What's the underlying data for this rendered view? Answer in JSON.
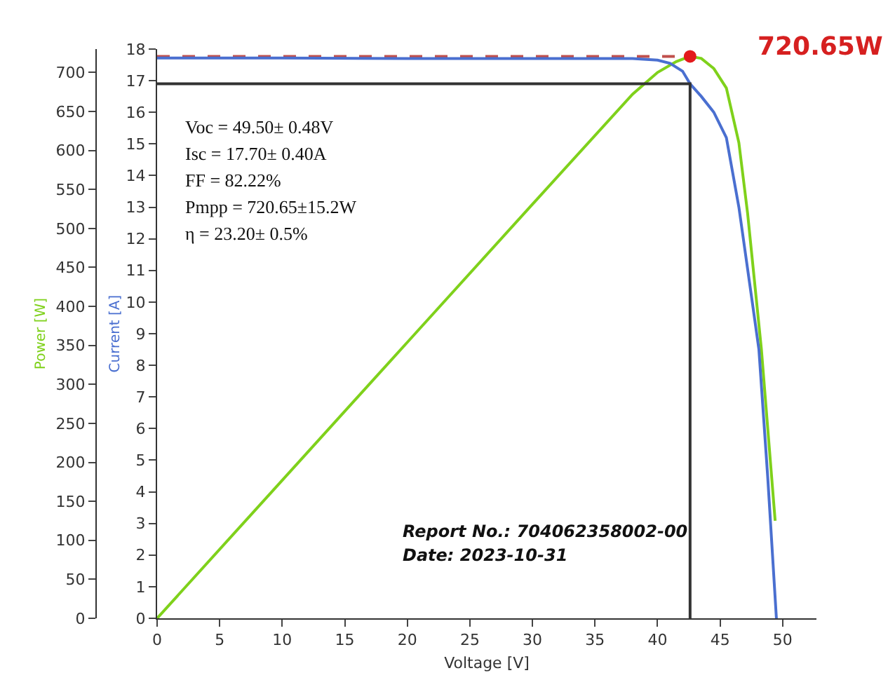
{
  "chart_data": {
    "type": "line",
    "xlabel": "Voltage [V]",
    "ylabel": "Power [W]",
    "y2label": "Current [A]",
    "xlim": [
      0,
      52.7
    ],
    "xticks": [
      0,
      5,
      10,
      15,
      20,
      25,
      30,
      35,
      40,
      45,
      50
    ],
    "ylim": [
      0,
      730
    ],
    "yticks": [
      0,
      50,
      100,
      150,
      200,
      250,
      300,
      350,
      400,
      450,
      500,
      550,
      600,
      650,
      700
    ],
    "y2lim": [
      0,
      18
    ],
    "y2ticks": [
      0,
      1,
      2,
      3,
      4,
      5,
      6,
      7,
      8,
      9,
      10,
      11,
      12,
      13,
      14,
      15,
      16,
      17,
      18
    ],
    "marker": "none",
    "line_style": "solid",
    "series": [
      {
        "color": "#4a6fd0",
        "axis": "y2",
        "x": [
          0,
          10,
          20,
          30,
          38,
          40,
          41,
          42,
          42.6,
          43.5,
          44.5,
          45.5,
          46.5,
          47.5,
          48.1,
          48.8,
          49.5
        ],
        "values": [
          17.72,
          17.72,
          17.7,
          17.7,
          17.7,
          17.65,
          17.55,
          17.3,
          16.9,
          16.5,
          16.0,
          15.2,
          13.0,
          10.2,
          8.5,
          4.5,
          0
        ]
      },
      {
        "color": "#7fd11b",
        "axis": "y",
        "x": [
          0,
          10,
          20,
          30,
          38,
          40,
          41.5,
          42.6,
          43.5,
          44.5,
          45.5,
          46.5,
          47.2,
          48.3,
          49.4
        ],
        "values": [
          0,
          177,
          354,
          531,
          672,
          700,
          714,
          720.65,
          718,
          705,
          680,
          610,
          519,
          345,
          125
        ]
      },
      {
        "color": "#333333",
        "axis": "y2",
        "x": [
          0,
          42.6,
          42.6
        ],
        "values": [
          16.9,
          16.9,
          0
        ]
      },
      {
        "color": "#c0504d",
        "axis": "y",
        "line_style": "dashed",
        "x": [
          0,
          42.6
        ],
        "values": [
          720.65,
          720.65
        ]
      },
      {
        "type": "scatter",
        "color": "#e31a1c",
        "axis": "y",
        "marker": "circle",
        "x": [
          42.6
        ],
        "values": [
          720.65
        ]
      }
    ],
    "annotations": [
      {
        "text": "720.65W",
        "x": 42.6,
        "y": 720.65
      },
      "Voc = 49.50± 0.48V",
      "Isc = 17.70± 0.40A",
      "FF = 82.22%",
      "Pmpp = 720.65±15.2W",
      "η = 23.20± 0.5%",
      "Report No.: 704062358002-00",
      "Date: 2023-10-31"
    ]
  }
}
